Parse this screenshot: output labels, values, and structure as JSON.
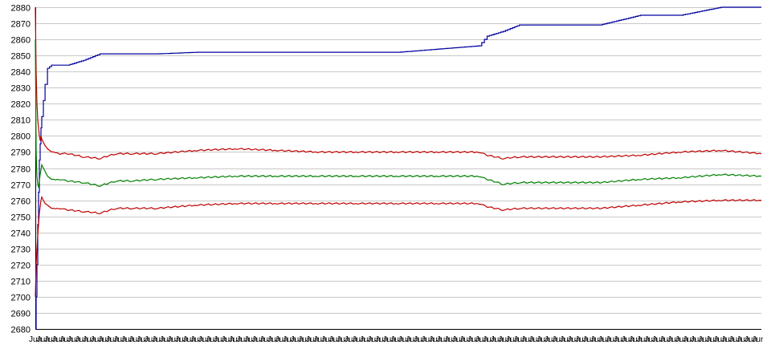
{
  "chart_data": {
    "type": "line",
    "title": "",
    "xlabel": "",
    "ylabel": "",
    "ylim": [
      2680,
      2880
    ],
    "yticks": [
      2680,
      2690,
      2700,
      2710,
      2720,
      2730,
      2740,
      2750,
      2760,
      2770,
      2780,
      2790,
      2800,
      2810,
      2820,
      2830,
      2840,
      2850,
      2860,
      2870,
      2880
    ],
    "grid": true,
    "legend": "none",
    "x_tick_text": "Jun",
    "x_tick_count": 96,
    "x": [
      0,
      1,
      2,
      3,
      4,
      5,
      6,
      7,
      8,
      10,
      12,
      15,
      20,
      25,
      30,
      40,
      60,
      80,
      100,
      120,
      150,
      200,
      250,
      300,
      350,
      400,
      450,
      500,
      550,
      560,
      580,
      600,
      700,
      750,
      800,
      850,
      900
    ],
    "series": [
      {
        "color": "#0000a0",
        "values": [
          2680,
          2700,
          2720,
          2745,
          2765,
          2785,
          2795,
          2805,
          2812,
          2822,
          2832,
          2842,
          2844,
          2844,
          2844,
          2844,
          2847,
          2851,
          2851,
          2851,
          2851,
          2852,
          2852,
          2852,
          2852,
          2852,
          2852,
          2854,
          2856,
          2862,
          2865,
          2869,
          2869,
          2875,
          2875,
          2880,
          2880
        ]
      },
      {
        "color": "#c00000",
        "values": [
          2880,
          2840,
          2820,
          2810,
          2805,
          2800,
          2797,
          2800,
          2798,
          2796,
          2794,
          2792,
          2790,
          2790,
          2789,
          2789,
          2787,
          2786,
          2789,
          2789,
          2789,
          2791,
          2792,
          2791,
          2790,
          2790,
          2790,
          2790,
          2790,
          2788,
          2786,
          2787,
          2787,
          2788,
          2790,
          2791,
          2789
        ]
      },
      {
        "color": "#008000",
        "values": [
          2860,
          2790,
          2775,
          2770,
          2768,
          2772,
          2776,
          2779,
          2782,
          2780,
          2778,
          2775,
          2773,
          2773,
          2773,
          2772,
          2771,
          2769,
          2772,
          2772,
          2773,
          2774,
          2775,
          2775,
          2775,
          2775,
          2775,
          2775,
          2775,
          2773,
          2770,
          2771,
          2771,
          2773,
          2774,
          2776,
          2775
        ]
      },
      {
        "color": "#c00000",
        "values": [
          2700,
          2720,
          2730,
          2738,
          2745,
          2752,
          2756,
          2760,
          2762,
          2760,
          2758,
          2757,
          2755,
          2755,
          2755,
          2754,
          2753,
          2752,
          2755,
          2755,
          2755,
          2757,
          2758,
          2758,
          2758,
          2758,
          2758,
          2758,
          2758,
          2756,
          2754,
          2755,
          2755,
          2757,
          2759,
          2760,
          2760
        ]
      }
    ]
  }
}
